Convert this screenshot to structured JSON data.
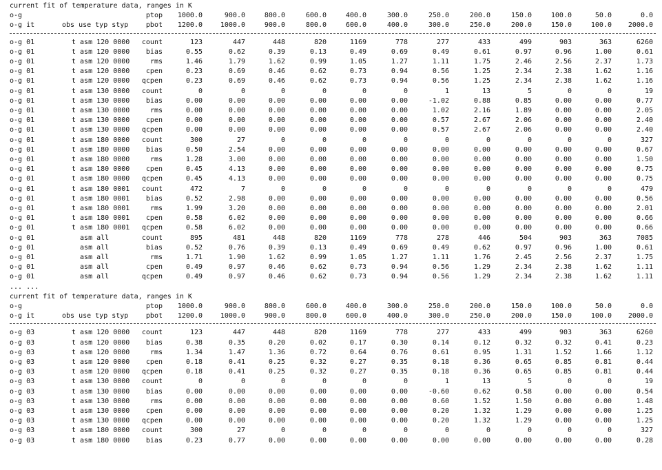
{
  "sections": [
    {
      "title": "current fit of temperature data, ranges in K",
      "header1": {
        "prefix": "o-g",
        "label": "ptop",
        "values": [
          "1000.0",
          "900.0",
          "800.0",
          "600.0",
          "400.0",
          "300.0",
          "250.0",
          "200.0",
          "150.0",
          "100.0",
          "50.0",
          "0.0"
        ]
      },
      "header2": {
        "prefix": "o-g it",
        "cols": "obs use typ styp",
        "label": "pbot",
        "values": [
          "1200.0",
          "1000.0",
          "900.0",
          "800.0",
          "600.0",
          "400.0",
          "300.0",
          "250.0",
          "200.0",
          "150.0",
          "100.0",
          "2000.0"
        ]
      },
      "rows": [
        {
          "it": "o-g 01",
          "desc": "t asm 120 0000",
          "stat": "count",
          "vals": [
            "123",
            "447",
            "448",
            "820",
            "1169",
            "778",
            "277",
            "433",
            "499",
            "903",
            "363",
            "6260"
          ]
        },
        {
          "it": "o-g 01",
          "desc": "t asm 120 0000",
          "stat": "bias",
          "vals": [
            "0.55",
            "0.62",
            "0.39",
            "0.13",
            "0.49",
            "0.69",
            "0.49",
            "0.61",
            "0.97",
            "0.96",
            "1.00",
            "0.61"
          ]
        },
        {
          "it": "o-g 01",
          "desc": "t asm 120 0000",
          "stat": "rms",
          "vals": [
            "1.46",
            "1.79",
            "1.62",
            "0.99",
            "1.05",
            "1.27",
            "1.11",
            "1.75",
            "2.46",
            "2.56",
            "2.37",
            "1.73"
          ]
        },
        {
          "it": "o-g 01",
          "desc": "t asm 120 0000",
          "stat": "cpen",
          "vals": [
            "0.23",
            "0.69",
            "0.46",
            "0.62",
            "0.73",
            "0.94",
            "0.56",
            "1.25",
            "2.34",
            "2.38",
            "1.62",
            "1.16"
          ]
        },
        {
          "it": "o-g 01",
          "desc": "t asm 120 0000",
          "stat": "qcpen",
          "vals": [
            "0.23",
            "0.69",
            "0.46",
            "0.62",
            "0.73",
            "0.94",
            "0.56",
            "1.25",
            "2.34",
            "2.38",
            "1.62",
            "1.16"
          ]
        },
        {
          "it": "o-g 01",
          "desc": "t asm 130 0000",
          "stat": "count",
          "vals": [
            "0",
            "0",
            "0",
            "0",
            "0",
            "0",
            "1",
            "13",
            "5",
            "0",
            "0",
            "19"
          ]
        },
        {
          "it": "o-g 01",
          "desc": "t asm 130 0000",
          "stat": "bias",
          "vals": [
            "0.00",
            "0.00",
            "0.00",
            "0.00",
            "0.00",
            "0.00",
            "-1.02",
            "0.88",
            "0.85",
            "0.00",
            "0.00",
            "0.77"
          ]
        },
        {
          "it": "o-g 01",
          "desc": "t asm 130 0000",
          "stat": "rms",
          "vals": [
            "0.00",
            "0.00",
            "0.00",
            "0.00",
            "0.00",
            "0.00",
            "1.02",
            "2.16",
            "1.89",
            "0.00",
            "0.00",
            "2.05"
          ]
        },
        {
          "it": "o-g 01",
          "desc": "t asm 130 0000",
          "stat": "cpen",
          "vals": [
            "0.00",
            "0.00",
            "0.00",
            "0.00",
            "0.00",
            "0.00",
            "0.57",
            "2.67",
            "2.06",
            "0.00",
            "0.00",
            "2.40"
          ]
        },
        {
          "it": "o-g 01",
          "desc": "t asm 130 0000",
          "stat": "qcpen",
          "vals": [
            "0.00",
            "0.00",
            "0.00",
            "0.00",
            "0.00",
            "0.00",
            "0.57",
            "2.67",
            "2.06",
            "0.00",
            "0.00",
            "2.40"
          ]
        },
        {
          "it": "o-g 01",
          "desc": "t asm 180 0000",
          "stat": "count",
          "vals": [
            "300",
            "27",
            "0",
            "0",
            "0",
            "0",
            "0",
            "0",
            "0",
            "0",
            "0",
            "327"
          ]
        },
        {
          "it": "o-g 01",
          "desc": "t asm 180 0000",
          "stat": "bias",
          "vals": [
            "0.50",
            "2.54",
            "0.00",
            "0.00",
            "0.00",
            "0.00",
            "0.00",
            "0.00",
            "0.00",
            "0.00",
            "0.00",
            "0.67"
          ]
        },
        {
          "it": "o-g 01",
          "desc": "t asm 180 0000",
          "stat": "rms",
          "vals": [
            "1.28",
            "3.00",
            "0.00",
            "0.00",
            "0.00",
            "0.00",
            "0.00",
            "0.00",
            "0.00",
            "0.00",
            "0.00",
            "1.50"
          ]
        },
        {
          "it": "o-g 01",
          "desc": "t asm 180 0000",
          "stat": "cpen",
          "vals": [
            "0.45",
            "4.13",
            "0.00",
            "0.00",
            "0.00",
            "0.00",
            "0.00",
            "0.00",
            "0.00",
            "0.00",
            "0.00",
            "0.75"
          ]
        },
        {
          "it": "o-g 01",
          "desc": "t asm 180 0000",
          "stat": "qcpen",
          "vals": [
            "0.45",
            "4.13",
            "0.00",
            "0.00",
            "0.00",
            "0.00",
            "0.00",
            "0.00",
            "0.00",
            "0.00",
            "0.00",
            "0.75"
          ]
        },
        {
          "it": "o-g 01",
          "desc": "t asm 180 0001",
          "stat": "count",
          "vals": [
            "472",
            "7",
            "0",
            "0",
            "0",
            "0",
            "0",
            "0",
            "0",
            "0",
            "0",
            "479"
          ]
        },
        {
          "it": "o-g 01",
          "desc": "t asm 180 0001",
          "stat": "bias",
          "vals": [
            "0.52",
            "2.98",
            "0.00",
            "0.00",
            "0.00",
            "0.00",
            "0.00",
            "0.00",
            "0.00",
            "0.00",
            "0.00",
            "0.56"
          ]
        },
        {
          "it": "o-g 01",
          "desc": "t asm 180 0001",
          "stat": "rms",
          "vals": [
            "1.99",
            "3.20",
            "0.00",
            "0.00",
            "0.00",
            "0.00",
            "0.00",
            "0.00",
            "0.00",
            "0.00",
            "0.00",
            "2.01"
          ]
        },
        {
          "it": "o-g 01",
          "desc": "t asm 180 0001",
          "stat": "cpen",
          "vals": [
            "0.58",
            "6.02",
            "0.00",
            "0.00",
            "0.00",
            "0.00",
            "0.00",
            "0.00",
            "0.00",
            "0.00",
            "0.00",
            "0.66"
          ]
        },
        {
          "it": "o-g 01",
          "desc": "t asm 180 0001",
          "stat": "qcpen",
          "vals": [
            "0.58",
            "6.02",
            "0.00",
            "0.00",
            "0.00",
            "0.00",
            "0.00",
            "0.00",
            "0.00",
            "0.00",
            "0.00",
            "0.66"
          ]
        },
        {
          "it": "o-g 01",
          "desc": "  asm all",
          "stat": "count",
          "vals": [
            "895",
            "481",
            "448",
            "820",
            "1169",
            "778",
            "278",
            "446",
            "504",
            "903",
            "363",
            "7085"
          ]
        },
        {
          "it": "o-g 01",
          "desc": "  asm all",
          "stat": "bias",
          "vals": [
            "0.52",
            "0.76",
            "0.39",
            "0.13",
            "0.49",
            "0.69",
            "0.49",
            "0.62",
            "0.97",
            "0.96",
            "1.00",
            "0.61"
          ]
        },
        {
          "it": "o-g 01",
          "desc": "  asm all",
          "stat": "rms",
          "vals": [
            "1.71",
            "1.90",
            "1.62",
            "0.99",
            "1.05",
            "1.27",
            "1.11",
            "1.76",
            "2.45",
            "2.56",
            "2.37",
            "1.75"
          ]
        },
        {
          "it": "o-g 01",
          "desc": "  asm all",
          "stat": "cpen",
          "vals": [
            "0.49",
            "0.97",
            "0.46",
            "0.62",
            "0.73",
            "0.94",
            "0.56",
            "1.29",
            "2.34",
            "2.38",
            "1.62",
            "1.11"
          ]
        },
        {
          "it": "o-g 01",
          "desc": "  asm all",
          "stat": "qcpen",
          "vals": [
            "0.49",
            "0.97",
            "0.46",
            "0.62",
            "0.73",
            "0.94",
            "0.56",
            "1.29",
            "2.34",
            "2.38",
            "1.62",
            "1.11"
          ]
        }
      ]
    },
    {
      "title": "current fit of temperature data, ranges in K",
      "header1": {
        "prefix": "o-g",
        "label": "ptop",
        "values": [
          "1000.0",
          "900.0",
          "800.0",
          "600.0",
          "400.0",
          "300.0",
          "250.0",
          "200.0",
          "150.0",
          "100.0",
          "50.0",
          "0.0"
        ]
      },
      "header2": {
        "prefix": "o-g it",
        "cols": "obs use typ styp",
        "label": "pbot",
        "values": [
          "1200.0",
          "1000.0",
          "900.0",
          "800.0",
          "600.0",
          "400.0",
          "300.0",
          "250.0",
          "200.0",
          "150.0",
          "100.0",
          "2000.0"
        ]
      },
      "rows": [
        {
          "it": "o-g 03",
          "desc": "t asm 120 0000",
          "stat": "count",
          "vals": [
            "123",
            "447",
            "448",
            "820",
            "1169",
            "778",
            "277",
            "433",
            "499",
            "903",
            "363",
            "6260"
          ]
        },
        {
          "it": "o-g 03",
          "desc": "t asm 120 0000",
          "stat": "bias",
          "vals": [
            "0.38",
            "0.35",
            "0.20",
            "0.02",
            "0.17",
            "0.30",
            "0.14",
            "0.12",
            "0.32",
            "0.32",
            "0.41",
            "0.23"
          ]
        },
        {
          "it": "o-g 03",
          "desc": "t asm 120 0000",
          "stat": "rms",
          "vals": [
            "1.34",
            "1.47",
            "1.36",
            "0.72",
            "0.64",
            "0.76",
            "0.61",
            "0.95",
            "1.31",
            "1.52",
            "1.66",
            "1.12"
          ]
        },
        {
          "it": "o-g 03",
          "desc": "t asm 120 0000",
          "stat": "cpen",
          "vals": [
            "0.18",
            "0.41",
            "0.25",
            "0.32",
            "0.27",
            "0.35",
            "0.18",
            "0.36",
            "0.65",
            "0.85",
            "0.81",
            "0.44"
          ]
        },
        {
          "it": "o-g 03",
          "desc": "t asm 120 0000",
          "stat": "qcpen",
          "vals": [
            "0.18",
            "0.41",
            "0.25",
            "0.32",
            "0.27",
            "0.35",
            "0.18",
            "0.36",
            "0.65",
            "0.85",
            "0.81",
            "0.44"
          ]
        },
        {
          "it": "o-g 03",
          "desc": "t asm 130 0000",
          "stat": "count",
          "vals": [
            "0",
            "0",
            "0",
            "0",
            "0",
            "0",
            "1",
            "13",
            "5",
            "0",
            "0",
            "19"
          ]
        },
        {
          "it": "o-g 03",
          "desc": "t asm 130 0000",
          "stat": "bias",
          "vals": [
            "0.00",
            "0.00",
            "0.00",
            "0.00",
            "0.00",
            "0.00",
            "-0.60",
            "0.62",
            "0.58",
            "0.00",
            "0.00",
            "0.54"
          ]
        },
        {
          "it": "o-g 03",
          "desc": "t asm 130 0000",
          "stat": "rms",
          "vals": [
            "0.00",
            "0.00",
            "0.00",
            "0.00",
            "0.00",
            "0.00",
            "0.60",
            "1.52",
            "1.50",
            "0.00",
            "0.00",
            "1.48"
          ]
        },
        {
          "it": "o-g 03",
          "desc": "t asm 130 0000",
          "stat": "cpen",
          "vals": [
            "0.00",
            "0.00",
            "0.00",
            "0.00",
            "0.00",
            "0.00",
            "0.20",
            "1.32",
            "1.29",
            "0.00",
            "0.00",
            "1.25"
          ]
        },
        {
          "it": "o-g 03",
          "desc": "t asm 130 0000",
          "stat": "qcpen",
          "vals": [
            "0.00",
            "0.00",
            "0.00",
            "0.00",
            "0.00",
            "0.00",
            "0.20",
            "1.32",
            "1.29",
            "0.00",
            "0.00",
            "1.25"
          ]
        },
        {
          "it": "o-g 03",
          "desc": "t asm 180 0000",
          "stat": "count",
          "vals": [
            "300",
            "27",
            "0",
            "0",
            "0",
            "0",
            "0",
            "0",
            "0",
            "0",
            "0",
            "327"
          ]
        },
        {
          "it": "o-g 03",
          "desc": "t asm 180 0000",
          "stat": "bias",
          "vals": [
            "0.23",
            "0.77",
            "0.00",
            "0.00",
            "0.00",
            "0.00",
            "0.00",
            "0.00",
            "0.00",
            "0.00",
            "0.00",
            "0.28"
          ]
        }
      ]
    }
  ],
  "ellipsis": "... ..."
}
